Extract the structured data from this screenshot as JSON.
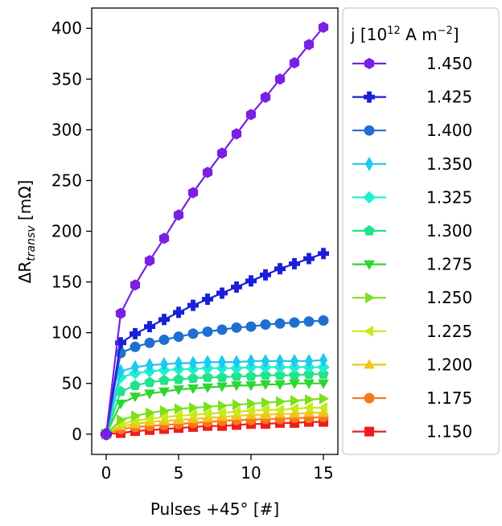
{
  "chart_data": {
    "type": "line",
    "title": "",
    "xlabel": "Pulses +45° [#]",
    "ylabel": {
      "prefix": "ΔR",
      "subscript": "transv",
      "suffix": " [mΩ]"
    },
    "xlim": [
      -1,
      16
    ],
    "ylim": [
      -20,
      420
    ],
    "xticks": [
      0,
      5,
      10,
      15
    ],
    "yticks": [
      0,
      50,
      100,
      150,
      200,
      250,
      300,
      350,
      400
    ],
    "grid": false,
    "legend": {
      "placement": "outside-right",
      "title": {
        "prefix": "j [10",
        "sup1": "12",
        "mid": " A m",
        "sup2": "−2",
        "suffix": "]"
      }
    },
    "x": [
      0,
      1,
      2,
      3,
      4,
      5,
      6,
      7,
      8,
      9,
      10,
      11,
      12,
      13,
      14,
      15
    ],
    "series": [
      {
        "name": "1.450",
        "color": "#7a1fe3",
        "marker": "hexagon",
        "values": [
          0,
          119,
          147,
          171,
          193,
          216,
          238,
          258,
          277,
          296,
          315,
          332,
          350,
          366,
          384,
          401
        ]
      },
      {
        "name": "1.425",
        "color": "#1a1fd6",
        "marker": "plus",
        "values": [
          0,
          90,
          99,
          106,
          113,
          120,
          127,
          133,
          139,
          145,
          151,
          157,
          163,
          168,
          173,
          178
        ]
      },
      {
        "name": "1.400",
        "color": "#1f6fd0",
        "marker": "circle",
        "values": [
          0,
          80,
          86,
          90,
          93,
          96,
          99,
          101,
          103,
          105,
          106,
          108,
          109,
          110,
          111,
          112
        ]
      },
      {
        "name": "1.350",
        "color": "#1fc8f0",
        "marker": "thin-diamond",
        "values": [
          0,
          62,
          66,
          68,
          69,
          70,
          70,
          71,
          71,
          71,
          72,
          72,
          72,
          72,
          72,
          73
        ]
      },
      {
        "name": "1.325",
        "color": "#1ff0d0",
        "marker": "diamond",
        "values": [
          0,
          56,
          60,
          62,
          63,
          64,
          64,
          65,
          65,
          65,
          66,
          66,
          66,
          66,
          66,
          66
        ]
      },
      {
        "name": "1.300",
        "color": "#22e38a",
        "marker": "pentagon",
        "values": [
          0,
          42,
          48,
          51,
          53,
          54,
          55,
          56,
          56,
          57,
          57,
          58,
          58,
          58,
          59,
          59
        ]
      },
      {
        "name": "1.275",
        "color": "#2ed630",
        "marker": "triangle-down",
        "values": [
          0,
          30,
          37,
          40,
          42,
          44,
          45,
          46,
          47,
          48,
          48,
          49,
          49,
          50,
          50,
          50
        ]
      },
      {
        "name": "1.250",
        "color": "#7de01c",
        "marker": "triangle-right",
        "values": [
          0,
          14,
          18,
          21,
          23,
          25,
          26,
          27,
          28,
          29,
          30,
          31,
          32,
          33,
          34,
          35
        ]
      },
      {
        "name": "1.225",
        "color": "#c8ea1c",
        "marker": "triangle-left",
        "values": [
          0,
          10,
          13,
          15,
          17,
          18,
          19,
          20,
          21,
          22,
          23,
          24,
          24,
          25,
          26,
          26
        ]
      },
      {
        "name": "1.200",
        "color": "#f5c21c",
        "marker": "triangle-up",
        "values": [
          0,
          8,
          10,
          12,
          13,
          14,
          15,
          16,
          17,
          18,
          19,
          19,
          20,
          20,
          21,
          21
        ]
      },
      {
        "name": "1.175",
        "color": "#f57a1c",
        "marker": "circle",
        "values": [
          0,
          5,
          7,
          8,
          9,
          10,
          11,
          12,
          13,
          14,
          14,
          15,
          15,
          16,
          16,
          17
        ]
      },
      {
        "name": "1.150",
        "color": "#f01c1c",
        "marker": "square",
        "values": [
          0,
          1,
          3,
          4,
          5,
          6,
          7,
          8,
          8,
          9,
          10,
          10,
          11,
          11,
          12,
          12
        ]
      }
    ]
  }
}
